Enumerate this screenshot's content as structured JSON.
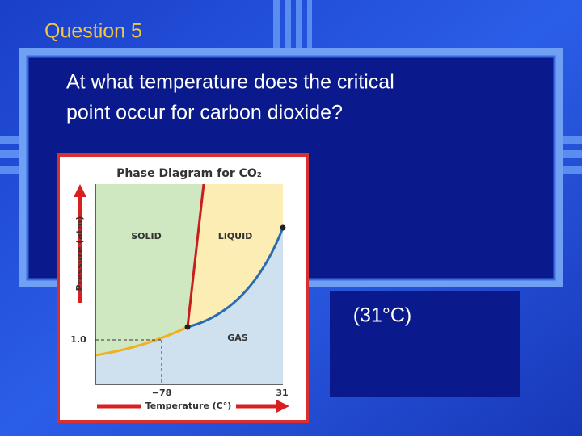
{
  "slide": {
    "title": "Question 5",
    "question": [
      "At what temperature does the critical",
      "point occur for carbon dioxide?"
    ],
    "answer": "(31°C)"
  },
  "diagram": {
    "title": "Phase Diagram for CO₂",
    "regions": [
      "SOLID",
      "LIQUID",
      "GAS"
    ],
    "y_axis_label": "Pressure (atm)",
    "x_axis_label": "Temperature (C°)",
    "y_tick": "1.0",
    "x_ticks": [
      "−78",
      "31"
    ]
  }
}
